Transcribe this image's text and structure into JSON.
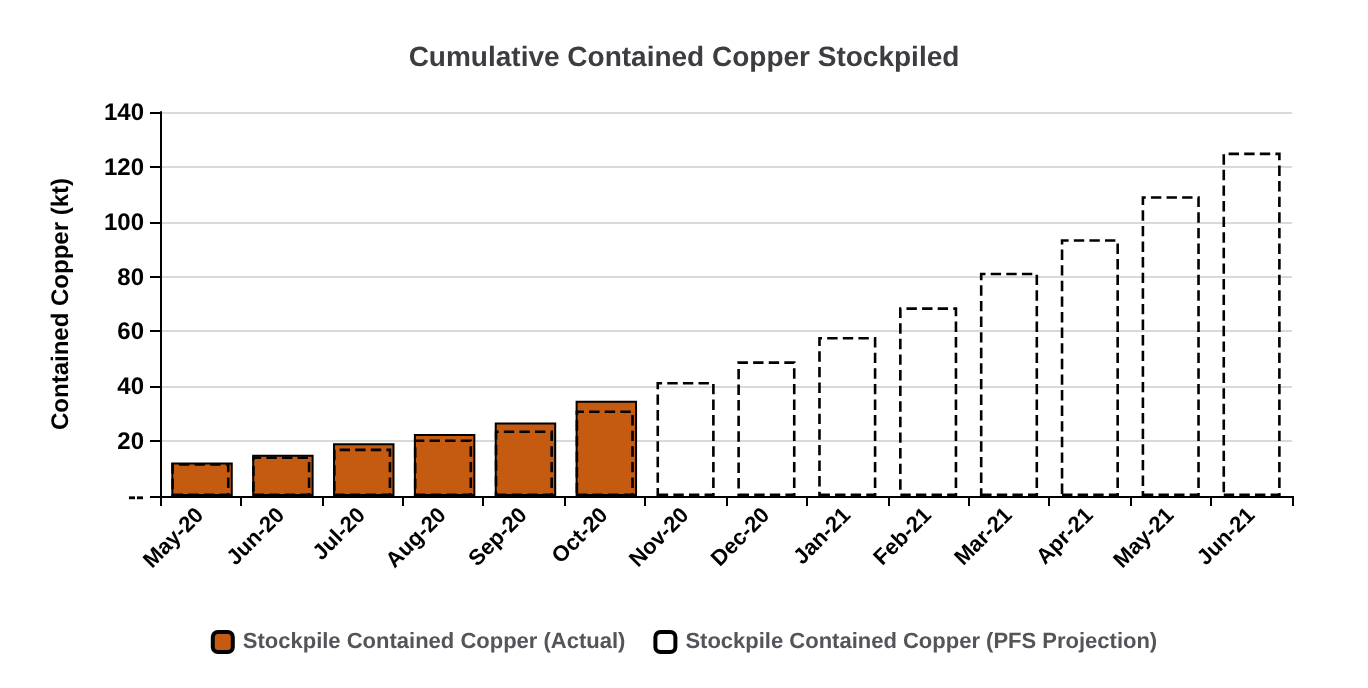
{
  "chart_data": {
    "type": "bar",
    "title": "Cumulative Contained Copper Stockpiled",
    "ylabel": "Contained Copper (kt)",
    "categories": [
      "May-20",
      "Jun-20",
      "Jul-20",
      "Aug-20",
      "Sep-20",
      "Oct-20",
      "Nov-20",
      "Dec-20",
      "Jan-21",
      "Feb-21",
      "Mar-21",
      "Apr-21",
      "May-21",
      "Jun-21"
    ],
    "series": [
      {
        "name": "Stockpile Contained Copper (Actual)",
        "color": "#c55a11",
        "values": [
          12.2,
          15,
          19.2,
          22.6,
          26.8,
          34.7,
          null,
          null,
          null,
          null,
          null,
          null,
          null,
          null
        ]
      },
      {
        "name": "Stockpile Contained Copper (PFS Projection)",
        "color": "#000000",
        "line_style": "dashed",
        "values": [
          12,
          14.4,
          17.3,
          20.6,
          23.9,
          31.2,
          41.6,
          49.1,
          58,
          68.8,
          81.4,
          93.6,
          109.3,
          125.2
        ]
      }
    ],
    "ylim": [
      0,
      140
    ],
    "yticks": [
      {
        "value": 0,
        "label": "--"
      },
      20,
      40,
      60,
      80,
      100,
      120,
      140
    ],
    "grid": "y",
    "legend": "bottom"
  }
}
